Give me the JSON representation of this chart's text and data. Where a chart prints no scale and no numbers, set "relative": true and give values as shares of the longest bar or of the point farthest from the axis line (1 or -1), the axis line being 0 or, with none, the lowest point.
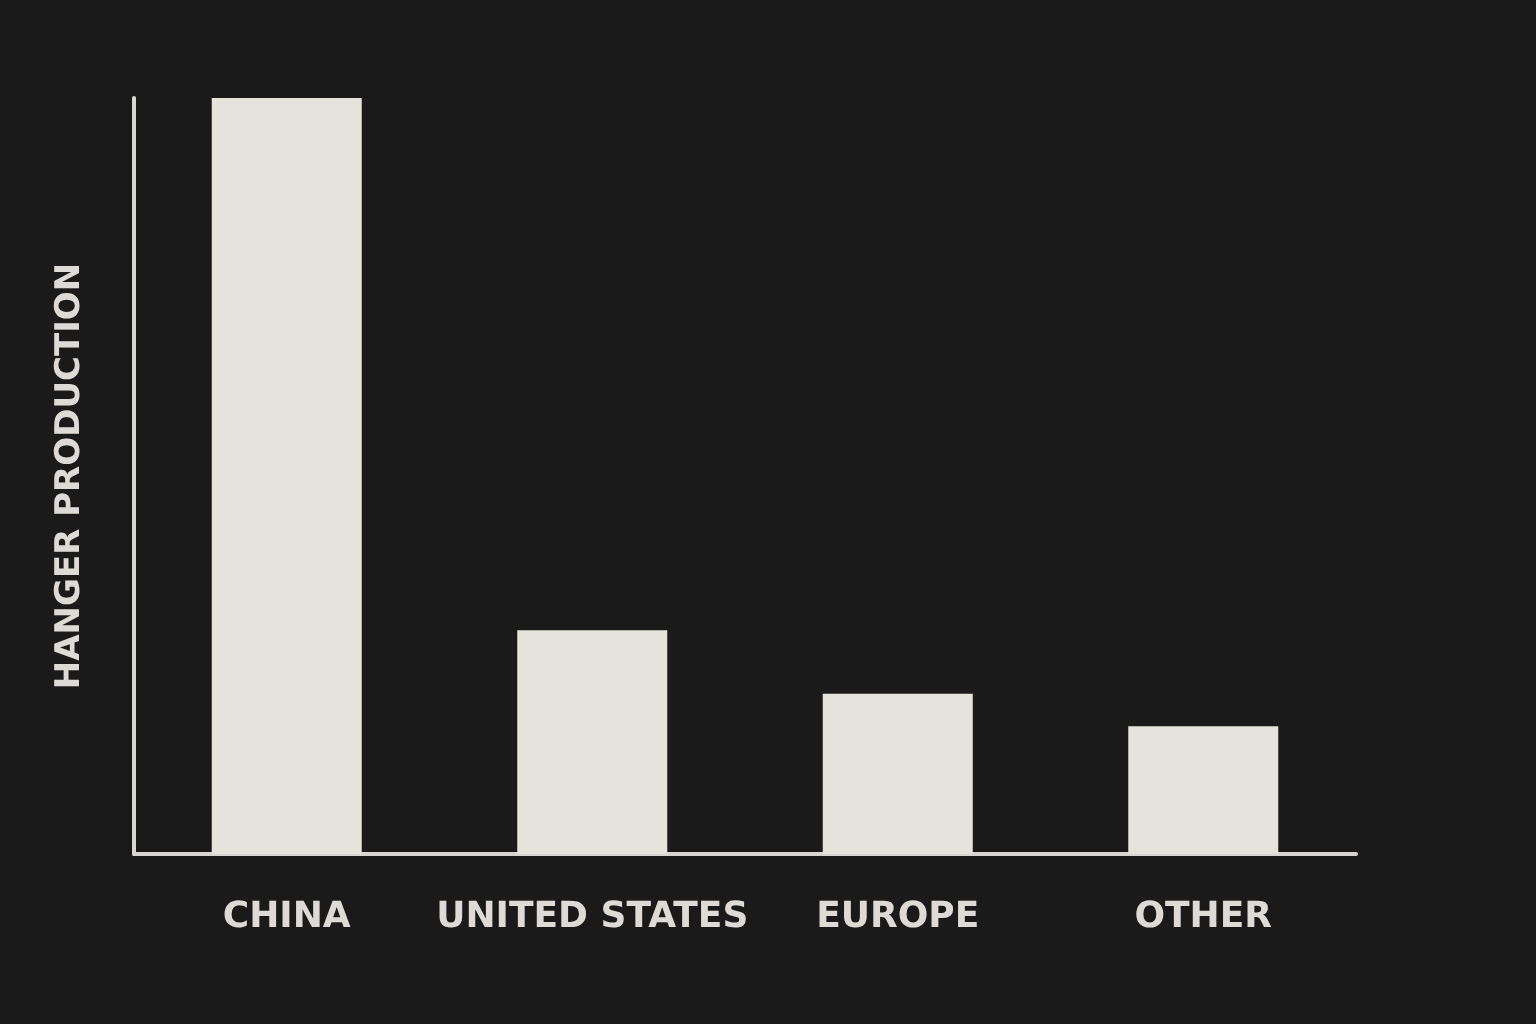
{
  "chart_data": {
    "type": "bar",
    "ylabel": "HANGER PRODUCTION",
    "categories": [
      "CHINA",
      "UNITED STATES",
      "EUROPE",
      "OTHER"
    ],
    "values": [
      1,
      0.296,
      0.212,
      0.169
    ],
    "color": "#e6e3dd",
    "relative": true
  }
}
